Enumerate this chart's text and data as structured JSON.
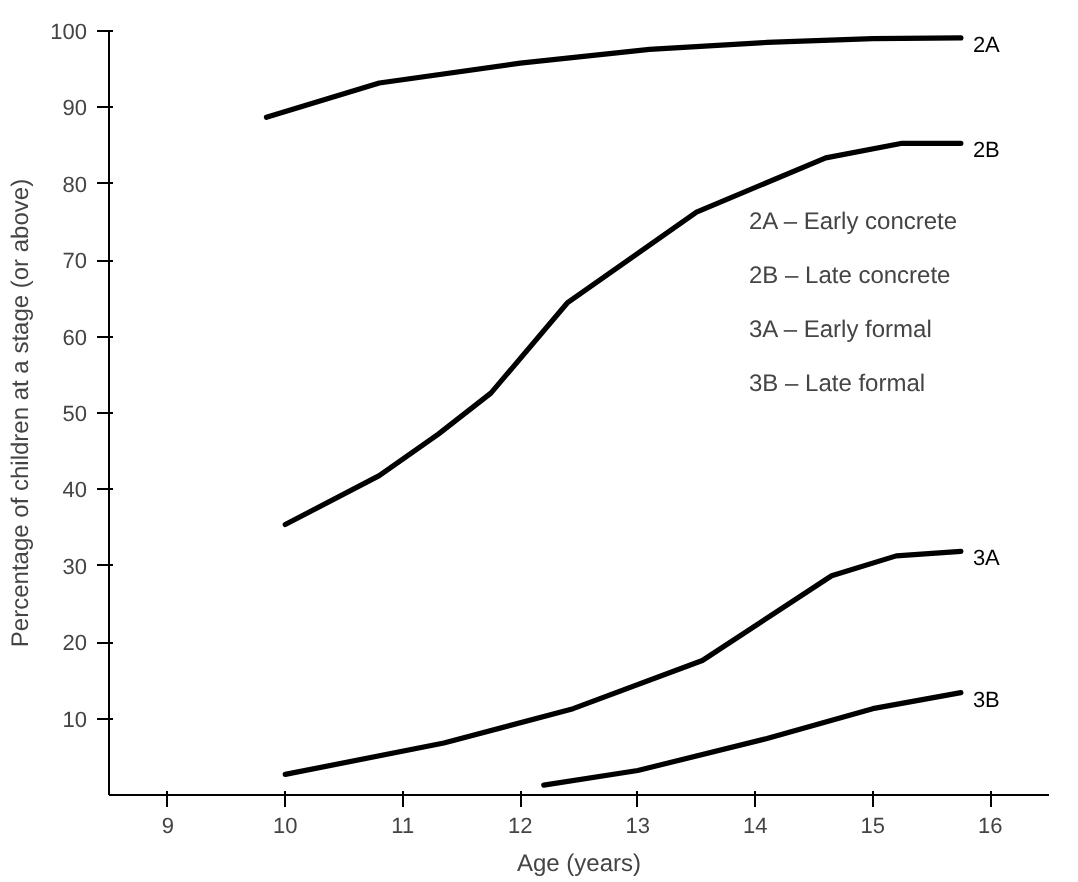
{
  "chart_data": {
    "type": "line",
    "xlabel": "Age (years)",
    "ylabel": "Percentage of children at a stage (or above)",
    "xlim": [
      8.5,
      16.5
    ],
    "ylim": [
      0,
      100
    ],
    "xticks": [
      9,
      10,
      11,
      12,
      13,
      14,
      15,
      16
    ],
    "yticks": [
      10,
      20,
      30,
      40,
      50,
      60,
      70,
      80,
      90,
      100
    ],
    "grid": false,
    "marker": "none",
    "line_style": "solid",
    "series": [
      {
        "name": "2A",
        "color": "#000000",
        "x": [
          9.84,
          10.8,
          12.0,
          13.1,
          14.1,
          15.0,
          15.75
        ],
        "values": [
          88.7,
          93.2,
          95.8,
          97.6,
          98.5,
          99.0,
          99.1
        ]
      },
      {
        "name": "2B",
        "color": "#000000",
        "x": [
          10.0,
          10.8,
          11.3,
          11.75,
          12.4,
          13.5,
          14.6,
          15.25,
          15.75
        ],
        "values": [
          35.4,
          41.8,
          47.2,
          52.6,
          64.4,
          76.3,
          83.4,
          85.3,
          85.3
        ]
      },
      {
        "name": "3A",
        "color": "#000000",
        "x": [
          10.0,
          11.35,
          12.45,
          13.55,
          14.65,
          15.2,
          15.75
        ],
        "values": [
          2.7,
          6.8,
          11.3,
          17.6,
          28.7,
          31.3,
          31.9
        ]
      },
      {
        "name": "3B",
        "color": "#000000",
        "x": [
          12.2,
          13.0,
          14.1,
          15.0,
          15.75
        ],
        "values": [
          1.3,
          3.2,
          7.4,
          11.3,
          13.4
        ]
      }
    ],
    "annotations": [
      "2A – Early concrete",
      "2B – Late concrete",
      "3A – Early formal",
      "3B – Late formal"
    ]
  }
}
